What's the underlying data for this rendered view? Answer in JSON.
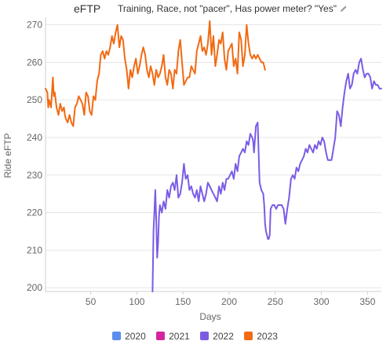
{
  "header": {
    "title": "eFTP",
    "filter": "Training, Race, not \"pacer\", Has power meter? \"Yes\"",
    "edit_icon": "pencil-icon"
  },
  "chart_data": {
    "type": "line",
    "title": "eFTP",
    "xlabel": "Days",
    "ylabel": "Ride eFTP",
    "xlim": [
      1,
      365
    ],
    "ylim": [
      199,
      272
    ],
    "xticks": [
      50,
      100,
      150,
      200,
      250,
      300,
      350
    ],
    "yticks": [
      200,
      210,
      220,
      230,
      240,
      250,
      260,
      270
    ],
    "grid": true,
    "legend_position": "bottom",
    "series": [
      {
        "name": "2020",
        "color": "#5b8def",
        "x": [],
        "y": []
      },
      {
        "name": "2021",
        "color": "#d6249f",
        "x": [],
        "y": []
      },
      {
        "name": "2022",
        "color": "#7b5ce5",
        "x": [
          117,
          118,
          119,
          120,
          121,
          122,
          123,
          124,
          125,
          127,
          129,
          131,
          133,
          135,
          137,
          139,
          141,
          143,
          145,
          147,
          149,
          151,
          152,
          153,
          155,
          157,
          159,
          161,
          163,
          165,
          167,
          169,
          171,
          173,
          175,
          177,
          179,
          181,
          183,
          185,
          187,
          189,
          191,
          193,
          195,
          197,
          199,
          201,
          203,
          205,
          207,
          209,
          211,
          213,
          215,
          217,
          219,
          221,
          223,
          225,
          226,
          227,
          229,
          231,
          233,
          235,
          237,
          238,
          239,
          240,
          241,
          242,
          243,
          244,
          245,
          247,
          249,
          251,
          253,
          255,
          257,
          259,
          261,
          263,
          265,
          267,
          269,
          271,
          273,
          275,
          277,
          279,
          281,
          283,
          285,
          287,
          289,
          291,
          293,
          295,
          297,
          299,
          301,
          303,
          305,
          307,
          309,
          311,
          313,
          315,
          317,
          319,
          321,
          323,
          325,
          327,
          329,
          331,
          333,
          335,
          337,
          339,
          341,
          343,
          345,
          347,
          349,
          351,
          353,
          355,
          357,
          359,
          361,
          363,
          365
        ],
        "y": [
          199,
          215,
          220,
          226,
          218,
          208,
          212,
          219,
          222,
          220,
          223,
          221,
          226,
          224,
          227,
          228,
          226,
          230,
          224,
          225,
          228,
          233,
          231,
          229,
          230,
          226,
          227,
          225,
          224,
          226,
          223,
          227,
          225,
          223,
          225,
          228,
          227,
          226,
          225,
          224,
          223,
          227,
          225,
          228,
          226,
          229,
          229,
          230,
          231,
          229,
          233,
          231,
          235,
          236,
          237,
          236,
          239,
          238,
          241,
          240,
          239,
          236,
          243,
          244,
          228,
          226,
          225,
          222,
          217,
          215,
          214,
          213,
          213,
          214,
          221,
          222,
          222,
          221,
          222,
          222,
          222,
          221,
          217,
          221,
          224,
          229,
          230,
          229,
          232,
          231,
          233,
          234,
          235,
          237,
          236,
          238,
          237,
          236,
          238,
          237,
          239,
          238,
          240,
          239,
          236,
          234,
          234,
          234,
          237,
          240,
          247,
          246,
          243,
          248,
          252,
          255,
          257,
          253,
          254,
          257,
          258,
          257,
          260,
          261,
          258,
          256,
          257,
          257,
          256,
          253,
          255,
          254,
          254,
          253,
          253
        ]
      },
      {
        "name": "2023",
        "color": "#f26a12",
        "x": [
          1,
          3,
          4,
          5,
          6,
          7,
          8,
          9,
          10,
          11,
          12,
          13,
          15,
          17,
          19,
          21,
          22,
          23,
          25,
          27,
          29,
          31,
          33,
          35,
          37,
          39,
          41,
          43,
          45,
          47,
          49,
          51,
          53,
          55,
          57,
          59,
          61,
          63,
          65,
          67,
          69,
          71,
          73,
          75,
          77,
          79,
          81,
          83,
          85,
          87,
          89,
          91,
          93,
          95,
          97,
          99,
          101,
          103,
          105,
          107,
          109,
          111,
          113,
          115,
          117,
          119,
          121,
          123,
          125,
          127,
          129,
          131,
          133,
          135,
          137,
          139,
          141,
          143,
          145,
          147,
          149,
          151,
          153,
          155,
          157,
          159,
          161,
          163,
          165,
          167,
          169,
          171,
          173,
          175,
          177,
          179,
          181,
          183,
          185,
          187,
          189,
          191,
          193,
          195,
          197,
          199,
          201,
          203,
          205,
          207,
          209,
          211,
          213,
          215,
          217,
          219,
          221,
          223,
          225,
          227,
          229,
          231,
          233,
          235,
          237,
          238,
          239
        ],
        "y": [
          253,
          252,
          248,
          250,
          249,
          248,
          252,
          256,
          251,
          252,
          250,
          248,
          246,
          249,
          247,
          248,
          246,
          245,
          244,
          246,
          244,
          243,
          248,
          249,
          251,
          250,
          249,
          246,
          252,
          251,
          247,
          246,
          251,
          250,
          255,
          257,
          262,
          263,
          261,
          263,
          262,
          264,
          267,
          265,
          268,
          270,
          264,
          267,
          266,
          261,
          258,
          253,
          258,
          256,
          259,
          261,
          257,
          259,
          262,
          264,
          262,
          258,
          256,
          259,
          257,
          254,
          258,
          256,
          257,
          259,
          262,
          256,
          254,
          258,
          257,
          253,
          258,
          257,
          263,
          266,
          260,
          254,
          255,
          256,
          256,
          259,
          258,
          257,
          263,
          265,
          267,
          263,
          264,
          262,
          265,
          271,
          262,
          267,
          259,
          262,
          266,
          265,
          268,
          261,
          258,
          263,
          264,
          265,
          259,
          261,
          257,
          268,
          266,
          259,
          262,
          270,
          265,
          262,
          261,
          262,
          261,
          262,
          261,
          260,
          260,
          259,
          258
        ]
      }
    ]
  }
}
